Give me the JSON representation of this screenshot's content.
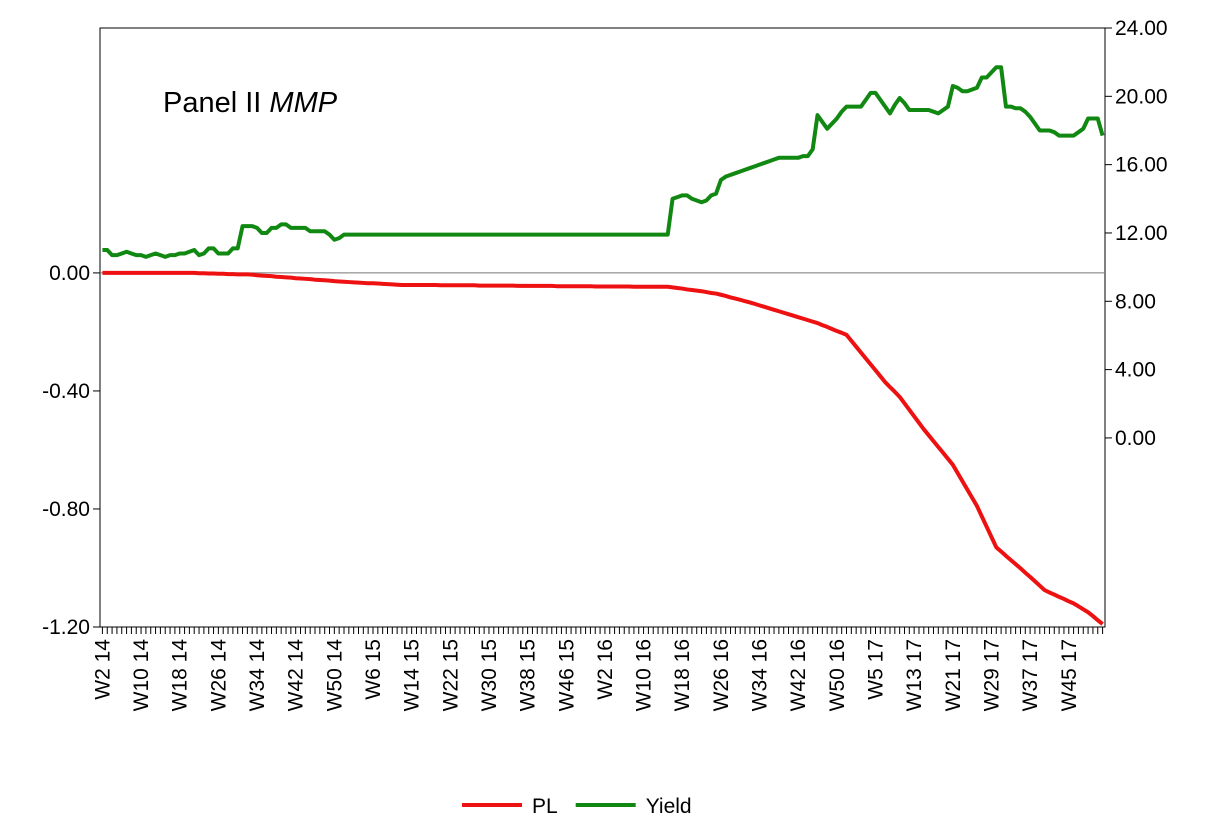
{
  "chart_data": {
    "type": "line",
    "annotations": [
      {
        "text": "Panel II",
        "style": "normal"
      },
      {
        "text": "MMP",
        "style": "italic"
      }
    ],
    "categories": [
      "W2 14",
      null,
      null,
      null,
      null,
      null,
      null,
      null,
      "W10 14",
      null,
      null,
      null,
      null,
      null,
      null,
      null,
      "W18 14",
      null,
      null,
      null,
      null,
      null,
      null,
      null,
      "W26 14",
      null,
      null,
      null,
      null,
      null,
      null,
      null,
      "W34 14",
      null,
      null,
      null,
      null,
      null,
      null,
      null,
      "W42 14",
      null,
      null,
      null,
      null,
      null,
      null,
      null,
      "W50 14",
      null,
      null,
      null,
      null,
      null,
      null,
      null,
      "W6 15",
      null,
      null,
      null,
      null,
      null,
      null,
      null,
      "W14 15",
      null,
      null,
      null,
      null,
      null,
      null,
      null,
      "W22 15",
      null,
      null,
      null,
      null,
      null,
      null,
      null,
      "W30 15",
      null,
      null,
      null,
      null,
      null,
      null,
      null,
      "W38 15",
      null,
      null,
      null,
      null,
      null,
      null,
      null,
      "W46 15",
      null,
      null,
      null,
      null,
      null,
      null,
      null,
      "W2 16",
      null,
      null,
      null,
      null,
      null,
      null,
      null,
      "W10 16",
      null,
      null,
      null,
      null,
      null,
      null,
      null,
      "W18 16",
      null,
      null,
      null,
      null,
      null,
      null,
      null,
      "W26 16",
      null,
      null,
      null,
      null,
      null,
      null,
      null,
      "W34 16",
      null,
      null,
      null,
      null,
      null,
      null,
      null,
      "W42 16",
      null,
      null,
      null,
      null,
      null,
      null,
      null,
      "W50 16",
      null,
      null,
      null,
      null,
      null,
      null,
      null,
      "W5 17",
      null,
      null,
      null,
      null,
      null,
      null,
      null,
      "W13 17",
      null,
      null,
      null,
      null,
      null,
      null,
      null,
      "W21 17",
      null,
      null,
      null,
      null,
      null,
      null,
      null,
      "W29 17",
      null,
      null,
      null,
      null,
      null,
      null,
      null,
      "W37 17",
      null,
      null,
      null,
      null,
      null,
      null,
      null,
      "W45 17",
      null,
      null,
      null,
      null,
      null,
      null,
      null
    ],
    "series": [
      {
        "name": "PL",
        "color": "#ee1111",
        "axis": "y",
        "values": [
          0,
          0,
          0,
          0,
          0,
          0,
          0,
          0,
          0,
          0,
          0,
          0,
          0,
          0,
          0,
          0,
          0,
          0,
          0,
          0,
          -0.001,
          -0.001,
          -0.002,
          -0.002,
          -0.003,
          -0.003,
          -0.004,
          -0.004,
          -0.005,
          -0.005,
          -0.005,
          -0.006,
          -0.008,
          -0.009,
          -0.01,
          -0.011,
          -0.013,
          -0.014,
          -0.015,
          -0.016,
          -0.018,
          -0.019,
          -0.02,
          -0.021,
          -0.023,
          -0.024,
          -0.025,
          -0.026,
          -0.028,
          -0.029,
          -0.03,
          -0.031,
          -0.032,
          -0.033,
          -0.034,
          -0.035,
          -0.035,
          -0.036,
          -0.037,
          -0.038,
          -0.039,
          -0.04,
          -0.041,
          -0.041,
          -0.041,
          -0.041,
          -0.041,
          -0.041,
          -0.041,
          -0.041,
          -0.042,
          -0.042,
          -0.042,
          -0.042,
          -0.042,
          -0.042,
          -0.042,
          -0.042,
          -0.043,
          -0.043,
          -0.043,
          -0.043,
          -0.043,
          -0.043,
          -0.043,
          -0.043,
          -0.044,
          -0.044,
          -0.044,
          -0.044,
          -0.044,
          -0.044,
          -0.044,
          -0.044,
          -0.045,
          -0.045,
          -0.045,
          -0.045,
          -0.045,
          -0.045,
          -0.045,
          -0.045,
          -0.046,
          -0.046,
          -0.046,
          -0.046,
          -0.046,
          -0.046,
          -0.046,
          -0.046,
          -0.047,
          -0.047,
          -0.047,
          -0.047,
          -0.047,
          -0.047,
          -0.047,
          -0.047,
          -0.049,
          -0.051,
          -0.053,
          -0.056,
          -0.058,
          -0.06,
          -0.062,
          -0.065,
          -0.068,
          -0.07,
          -0.074,
          -0.078,
          -0.083,
          -0.087,
          -0.091,
          -0.096,
          -0.1,
          -0.105,
          -0.11,
          -0.115,
          -0.12,
          -0.125,
          -0.13,
          -0.135,
          -0.14,
          -0.145,
          -0.15,
          -0.155,
          -0.16,
          -0.165,
          -0.17,
          -0.177,
          -0.183,
          -0.19,
          -0.197,
          -0.203,
          -0.21,
          -0.23,
          -0.25,
          -0.27,
          -0.29,
          -0.31,
          -0.33,
          -0.35,
          -0.37,
          -0.387,
          -0.403,
          -0.42,
          -0.442,
          -0.464,
          -0.486,
          -0.508,
          -0.53,
          -0.55,
          -0.57,
          -0.59,
          -0.61,
          -0.63,
          -0.65,
          -0.678,
          -0.706,
          -0.734,
          -0.762,
          -0.79,
          -0.825,
          -0.86,
          -0.895,
          -0.93,
          -0.944,
          -0.959,
          -0.973,
          -0.987,
          -1.001,
          -1.016,
          -1.03,
          -1.045,
          -1.06,
          -1.075,
          -1.083,
          -1.09,
          -1.098,
          -1.105,
          -1.113,
          -1.12,
          -1.13,
          -1.14,
          -1.15,
          -1.163,
          -1.177,
          -1.19
        ]
      },
      {
        "name": "Yield",
        "color": "#118811",
        "axis": "y2",
        "values": [
          11.0,
          11.0,
          10.7,
          10.7,
          10.8,
          10.9,
          10.8,
          10.7,
          10.7,
          10.6,
          10.7,
          10.8,
          10.7,
          10.6,
          10.7,
          10.7,
          10.8,
          10.8,
          10.9,
          11.0,
          10.7,
          10.8,
          11.1,
          11.1,
          10.8,
          10.8,
          10.8,
          11.1,
          11.1,
          12.4,
          12.4,
          12.4,
          12.3,
          12.0,
          12.0,
          12.3,
          12.3,
          12.5,
          12.5,
          12.3,
          12.3,
          12.3,
          12.3,
          12.1,
          12.1,
          12.1,
          12.1,
          11.9,
          11.6,
          11.7,
          11.9,
          11.9,
          11.9,
          11.9,
          11.9,
          11.9,
          11.9,
          11.9,
          11.9,
          11.9,
          11.9,
          11.9,
          11.9,
          11.9,
          11.9,
          11.9,
          11.9,
          11.9,
          11.9,
          11.9,
          11.9,
          11.9,
          11.9,
          11.9,
          11.9,
          11.9,
          11.9,
          11.9,
          11.9,
          11.9,
          11.9,
          11.9,
          11.9,
          11.9,
          11.9,
          11.9,
          11.9,
          11.9,
          11.9,
          11.9,
          11.9,
          11.9,
          11.9,
          11.9,
          11.9,
          11.9,
          11.9,
          11.9,
          11.9,
          11.9,
          11.9,
          11.9,
          11.9,
          11.9,
          11.9,
          11.9,
          11.9,
          11.9,
          11.9,
          11.9,
          11.9,
          11.9,
          11.9,
          11.9,
          11.9,
          11.9,
          11.9,
          11.9,
          14.0,
          14.1,
          14.2,
          14.2,
          14.0,
          13.9,
          13.8,
          13.9,
          14.2,
          14.3,
          15.1,
          15.3,
          15.4,
          15.5,
          15.6,
          15.7,
          15.8,
          15.9,
          16.0,
          16.1,
          16.2,
          16.3,
          16.4,
          16.4,
          16.4,
          16.4,
          16.4,
          16.5,
          16.5,
          16.9,
          18.9,
          18.5,
          18.1,
          18.4,
          18.7,
          19.1,
          19.4,
          19.4,
          19.4,
          19.4,
          19.8,
          20.2,
          20.2,
          19.8,
          19.4,
          19.0,
          19.5,
          19.9,
          19.6,
          19.2,
          19.2,
          19.2,
          19.2,
          19.2,
          19.1,
          19.0,
          19.2,
          19.4,
          20.6,
          20.5,
          20.3,
          20.3,
          20.4,
          20.5,
          21.1,
          21.1,
          21.4,
          21.7,
          21.7,
          19.4,
          19.4,
          19.3,
          19.3,
          19.1,
          18.8,
          18.4,
          18.0,
          18.0,
          18.0,
          17.9,
          17.7,
          17.7,
          17.7,
          17.7,
          17.9,
          18.1,
          18.7,
          18.7,
          18.7,
          17.7
        ]
      }
    ],
    "ylim": [
      -1.2,
      0.83
    ],
    "yticks": [
      {
        "value": -1.2,
        "label": "-1.20"
      },
      {
        "value": -0.8,
        "label": "-0.80"
      },
      {
        "value": -0.4,
        "label": "-0.40"
      },
      {
        "value": 0,
        "label": "0.00"
      }
    ],
    "y2lim": [
      -11.07,
      24
    ],
    "y2ticks": [
      {
        "value": 0,
        "label": "0.00"
      },
      {
        "value": 4,
        "label": "4.00"
      },
      {
        "value": 8,
        "label": "8.00"
      },
      {
        "value": 12,
        "label": "12.00"
      },
      {
        "value": 16,
        "label": "16.00"
      },
      {
        "value": 20,
        "label": "20.00"
      },
      {
        "value": 24,
        "label": "24.00"
      }
    ],
    "zero_line": true,
    "grid": false,
    "legend": "bottom"
  }
}
